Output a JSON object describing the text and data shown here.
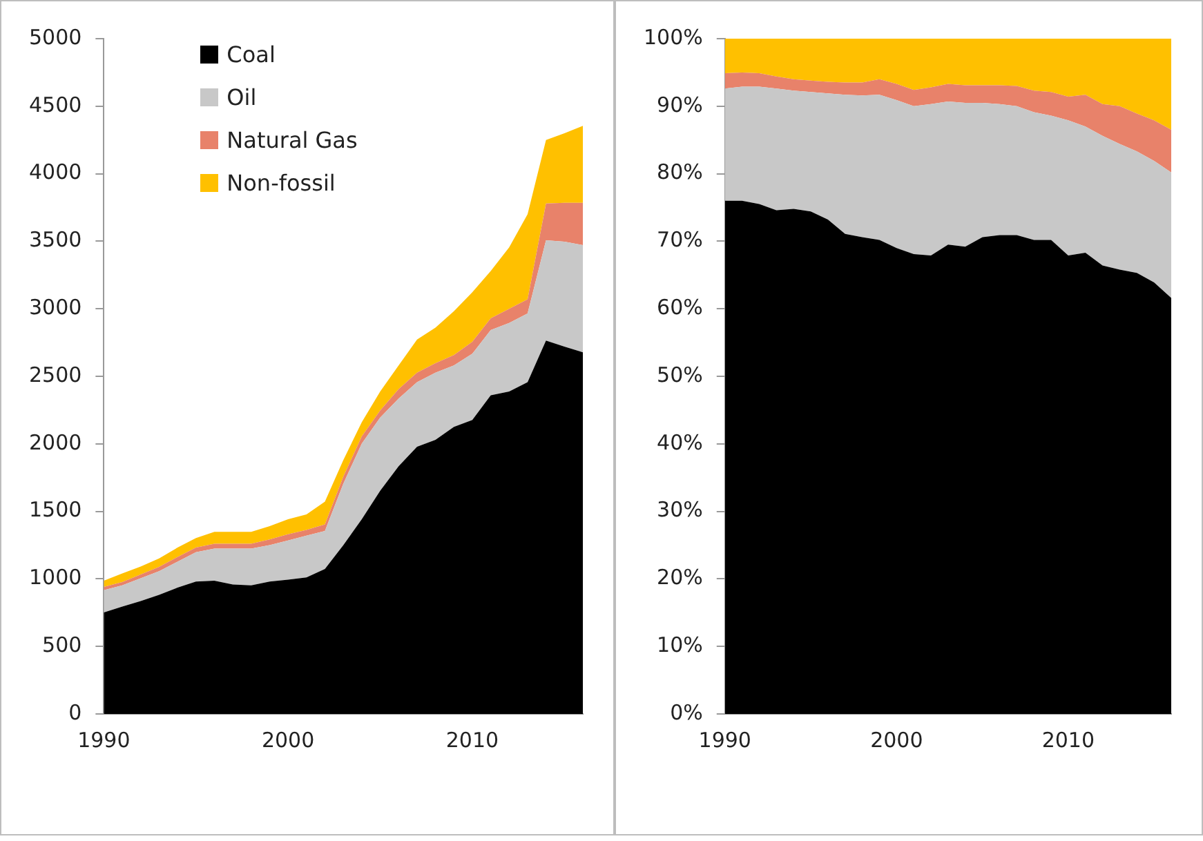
{
  "chart_data": [
    {
      "type": "area",
      "stacked": true,
      "legend": "top left",
      "grid": false,
      "x": [
        1990,
        1991,
        1992,
        1993,
        1994,
        1995,
        1996,
        1997,
        1998,
        1999,
        2000,
        2001,
        2002,
        2003,
        2004,
        2005,
        2006,
        2007,
        2008,
        2009,
        2010,
        2011,
        2012,
        2013,
        2014,
        2015,
        2016
      ],
      "xlim": [
        1990,
        2016
      ],
      "xticks": [
        1990,
        2000,
        2010
      ],
      "ylim": [
        0,
        5000
      ],
      "yticks": [
        0,
        500,
        1000,
        1500,
        2000,
        2500,
        3000,
        3500,
        4000,
        4500,
        5000
      ],
      "series": [
        {
          "name": "Coal",
          "color": "#000000",
          "values": [
            752,
            795,
            836,
            882,
            935,
            980,
            987,
            959,
            952,
            980,
            994,
            1011,
            1074,
            1250,
            1442,
            1652,
            1834,
            1978,
            2030,
            2125,
            2177,
            2359,
            2387,
            2457,
            2765,
            2720,
            2678
          ]
        },
        {
          "name": "Oil",
          "color": "#c8c8c8",
          "values": [
            165,
            157,
            169,
            175,
            192,
            217,
            238,
            266,
            273,
            270,
            291,
            309,
            281,
            455,
            560,
            543,
            501,
            479,
            497,
            455,
            490,
            483,
            508,
            508,
            742,
            777,
            794
          ]
        },
        {
          "name": "Natural Gas",
          "color": "#e8826a",
          "values": [
            24,
            25,
            28,
            32,
            35,
            35,
            35,
            35,
            35,
            42,
            45,
            42,
            49,
            52,
            53,
            52,
            70,
            70,
            70,
            77,
            88,
            88,
            105,
            105,
            273,
            288,
            313
          ]
        },
        {
          "name": "Non-fossil",
          "color": "#ffc000",
          "values": [
            46,
            63,
            59,
            63,
            70,
            70,
            88,
            88,
            88,
            98,
            112,
            115,
            168,
            123,
            105,
            140,
            175,
            245,
            263,
            325,
            367,
            350,
            455,
            630,
            470,
            515,
            570
          ]
        }
      ]
    },
    {
      "type": "area",
      "stacked": true,
      "grid": false,
      "x": [
        1990,
        1991,
        1992,
        1993,
        1994,
        1995,
        1996,
        1997,
        1998,
        1999,
        2000,
        2001,
        2002,
        2003,
        2004,
        2005,
        2006,
        2007,
        2008,
        2009,
        2010,
        2011,
        2012,
        2013,
        2014,
        2015,
        2016
      ],
      "xlim": [
        1990,
        2016
      ],
      "xticks": [
        1990,
        2000,
        2010
      ],
      "ylim": [
        0,
        100
      ],
      "yticks": [
        {
          "value": 0,
          "label": "0%"
        },
        {
          "value": 10,
          "label": "10%"
        },
        {
          "value": 20,
          "label": "20%"
        },
        {
          "value": 30,
          "label": "30%"
        },
        {
          "value": 40,
          "label": "40%"
        },
        {
          "value": 50,
          "label": "50%"
        },
        {
          "value": 60,
          "label": "60%"
        },
        {
          "value": 70,
          "label": "70%"
        },
        {
          "value": 80,
          "label": "80%"
        },
        {
          "value": 90,
          "label": "90%"
        },
        {
          "value": 100,
          "label": "100%"
        }
      ],
      "series": [
        {
          "color": "#000000",
          "values": [
            76.0,
            76.0,
            75.5,
            74.6,
            74.8,
            74.4,
            73.2,
            71.1,
            70.6,
            70.2,
            69.0,
            68.1,
            67.9,
            69.5,
            69.2,
            70.6,
            70.9,
            70.9,
            70.2,
            70.2,
            67.9,
            68.3,
            66.4,
            65.8,
            65.3,
            63.9,
            61.6
          ]
        },
        {
          "color": "#c8c8c8",
          "values": [
            16.6,
            16.9,
            17.4,
            18.0,
            17.5,
            17.7,
            18.7,
            20.6,
            21.0,
            21.5,
            21.9,
            21.9,
            22.4,
            21.2,
            21.3,
            19.9,
            19.4,
            19.1,
            18.9,
            18.4,
            20.0,
            18.7,
            19.2,
            18.6,
            18.0,
            18.0,
            18.6
          ]
        },
        {
          "color": "#e8826a",
          "values": [
            2.3,
            2.1,
            2.0,
            1.8,
            1.7,
            1.7,
            1.7,
            1.8,
            1.9,
            2.3,
            2.4,
            2.4,
            2.5,
            2.6,
            2.6,
            2.6,
            2.8,
            3.0,
            3.2,
            3.5,
            3.5,
            4.7,
            4.7,
            5.6,
            5.6,
            6.0,
            6.3
          ]
        },
        {
          "color": "#ffc000",
          "values": [
            5.1,
            5.0,
            5.1,
            5.6,
            6.0,
            6.2,
            6.4,
            6.5,
            6.5,
            6.0,
            6.7,
            7.6,
            7.2,
            6.7,
            6.9,
            6.9,
            6.9,
            7.0,
            7.7,
            7.9,
            8.6,
            8.3,
            9.7,
            10.0,
            11.1,
            12.1,
            13.5
          ]
        }
      ]
    }
  ]
}
